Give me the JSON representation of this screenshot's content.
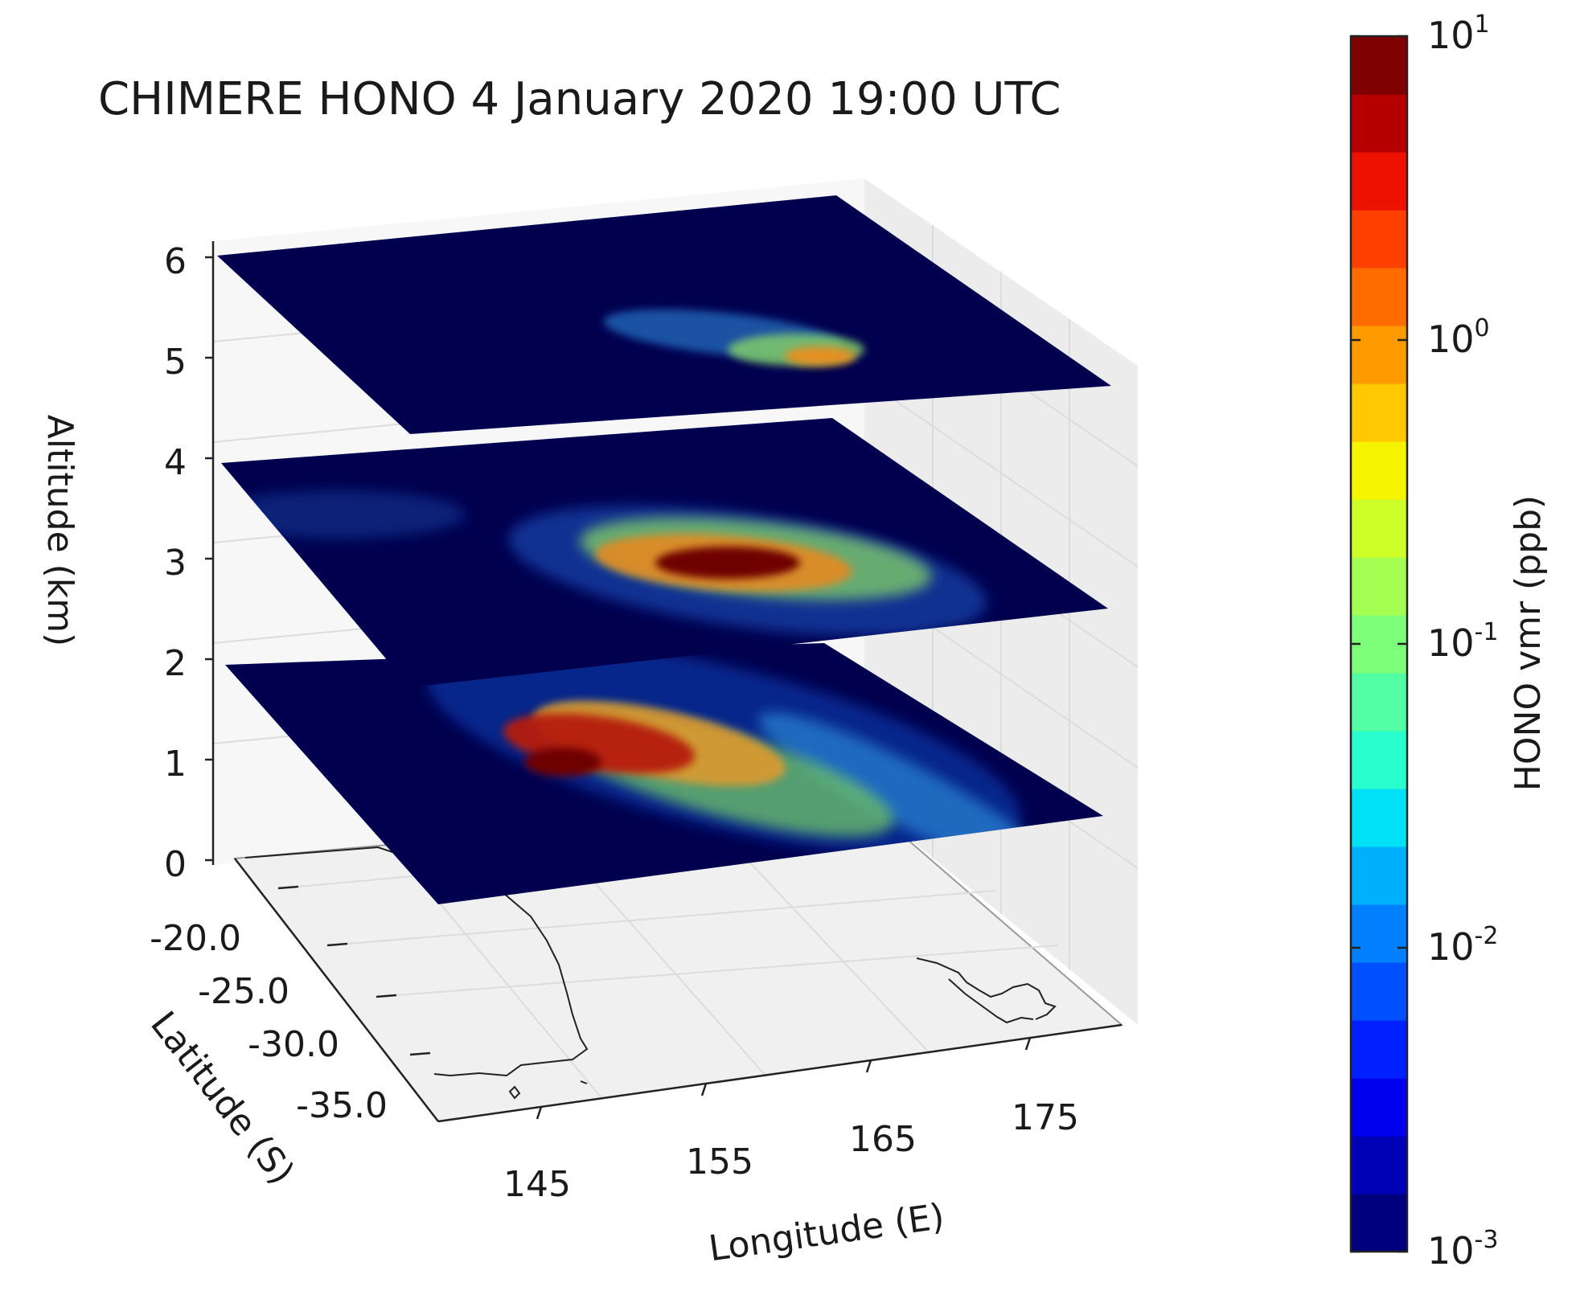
{
  "chart_data": {
    "type": "heatmap",
    "title": "CHIMERE HONO 4 January 2020 19:00 UTC",
    "view": "3d-stacked-layers",
    "axes": {
      "z": {
        "label": "Altitude (km)",
        "ticks": [
          "0",
          "1",
          "2",
          "3",
          "4",
          "5",
          "6"
        ],
        "range": [
          0,
          6
        ]
      },
      "y": {
        "label": "Latitude (S)",
        "ticks": [
          "-20.0",
          "-25.0",
          "-30.0",
          "-35.0"
        ]
      },
      "x": {
        "label": "Longitude (E)",
        "ticks": [
          "145",
          "155",
          "165",
          "175"
        ]
      }
    },
    "layers_altitude_km": [
      2,
      4,
      6
    ],
    "colorbar": {
      "label": "HONO vmr (ppb)",
      "scale": "log",
      "range": [
        0.001,
        10
      ],
      "ticks": [
        {
          "base": "10",
          "exp": "-3"
        },
        {
          "base": "10",
          "exp": "-2"
        },
        {
          "base": "10",
          "exp": "-1"
        },
        {
          "base": "10",
          "exp": "0"
        },
        {
          "base": "10",
          "exp": "1"
        }
      ],
      "colormap": [
        "#00007f",
        "#0000b6",
        "#0000ee",
        "#0020ff",
        "#0050ff",
        "#0080ff",
        "#00b0ff",
        "#00e0f7",
        "#29ffce",
        "#52ffa5",
        "#7dff7a",
        "#a5ff52",
        "#ceff29",
        "#f7f400",
        "#ffc800",
        "#ff9a00",
        "#ff6d00",
        "#ff3f00",
        "#ed1100",
        "#b60000",
        "#7f0000"
      ]
    },
    "grid": true,
    "colors": {
      "background_field": "#00004f",
      "pane": "#f3f3f3",
      "coastline": "#222222"
    }
  }
}
